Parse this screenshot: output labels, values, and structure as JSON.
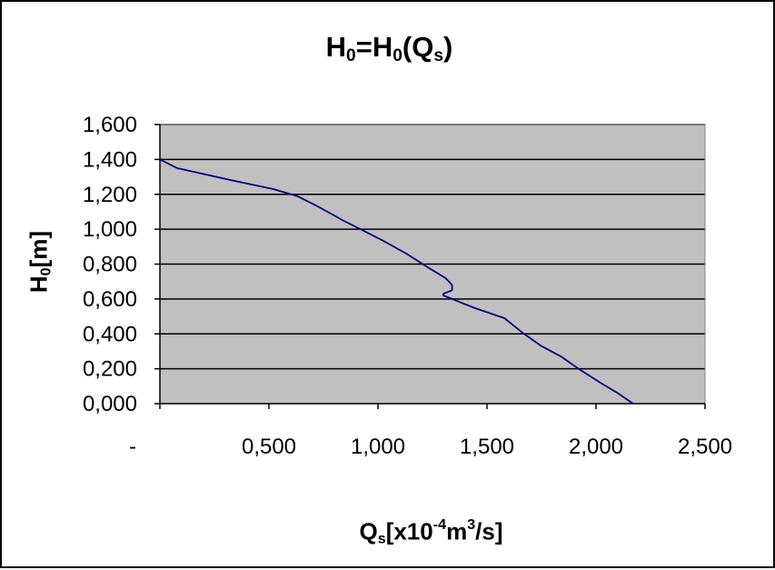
{
  "chart_data": {
    "type": "line",
    "title": {
      "main": "H",
      "sub1": "0",
      "mid": "=H",
      "sub2": "0",
      "open": "(Q",
      "sub3": "s",
      "close": ")"
    },
    "xlabel": {
      "main": "Q",
      "sub": "s",
      "pre": "[x10",
      "sup1": "-4",
      "unit": "m",
      "sup2": "3",
      "post": "/s]"
    },
    "ylabel": {
      "main": "H",
      "sub": "0",
      "post": "[m]"
    },
    "xlim": [
      0,
      2.5
    ],
    "ylim": [
      0,
      1.6
    ],
    "x_ticks": [
      0,
      0.5,
      1.0,
      1.5,
      2.0,
      2.5
    ],
    "x_tick_labels": [
      "-",
      "0,500",
      "1,000",
      "1,500",
      "2,000",
      "2,500"
    ],
    "y_ticks": [
      0,
      0.2,
      0.4,
      0.6,
      0.8,
      1.0,
      1.2,
      1.4,
      1.6
    ],
    "y_tick_labels": [
      "0,000",
      "0,200",
      "0,400",
      "0,600",
      "0,800",
      "1,000",
      "1,200",
      "1,400",
      "1,600"
    ],
    "grid": "horizontal",
    "background": "#c0c0c0",
    "series": [
      {
        "color": "#000080",
        "x": [
          0.0,
          0.08,
          0.33,
          0.52,
          0.63,
          0.74,
          0.84,
          0.92,
          1.03,
          1.13,
          1.23,
          1.31,
          1.34,
          1.34,
          1.3,
          1.3,
          1.44,
          1.58,
          1.67,
          1.75,
          1.84,
          1.92,
          2.02,
          2.1,
          2.17
        ],
        "y": [
          1.4,
          1.35,
          1.28,
          1.23,
          1.19,
          1.12,
          1.05,
          1.0,
          0.93,
          0.86,
          0.78,
          0.72,
          0.68,
          0.65,
          0.63,
          0.62,
          0.55,
          0.49,
          0.4,
          0.33,
          0.27,
          0.2,
          0.12,
          0.06,
          0.0
        ]
      }
    ]
  }
}
